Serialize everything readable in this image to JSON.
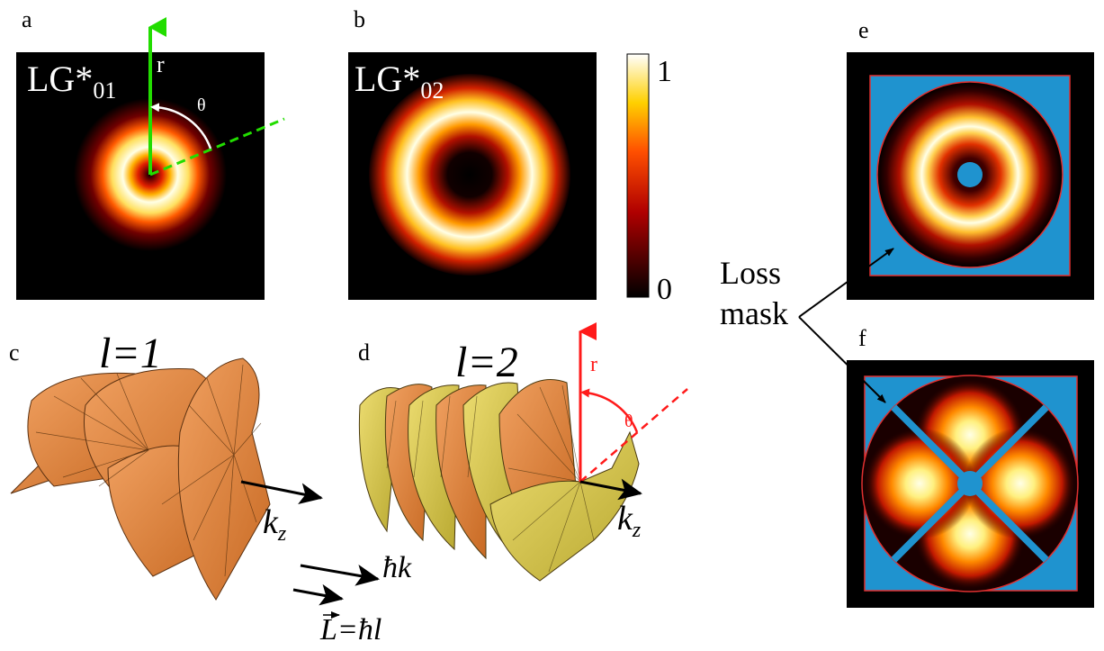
{
  "panels": {
    "a": {
      "letter": "a",
      "mode_label": "LG*",
      "mode_sub": "01",
      "radial_label": "r",
      "angle_label": "θ"
    },
    "b": {
      "letter": "b",
      "mode_label": "LG*",
      "mode_sub": "02"
    },
    "colorbar": {
      "max_label": "1",
      "min_label": "0",
      "range": [
        0,
        1
      ]
    },
    "c": {
      "letter": "c",
      "charge_label": "l=1",
      "k_base": "k",
      "k_sub": "z"
    },
    "d": {
      "letter": "d",
      "charge_label": "l=2",
      "radial_label": "r",
      "angle_label": "θ",
      "k_base": "k",
      "k_sub": "z"
    },
    "legend": {
      "momentum_label": "ħk",
      "orbital_label": "L=ħl"
    },
    "e": {
      "letter": "e"
    },
    "f": {
      "letter": "f"
    },
    "mask": {
      "line1": "Loss",
      "line2": "mask"
    }
  },
  "colors": {
    "green_axis": "#22dd00",
    "red_axis": "#ff1a1a",
    "mask_blue": "#1f93cf",
    "mask_border": "#e03030",
    "helix_orange": "#e0823a",
    "helix_yellow": "#d8c84a"
  }
}
